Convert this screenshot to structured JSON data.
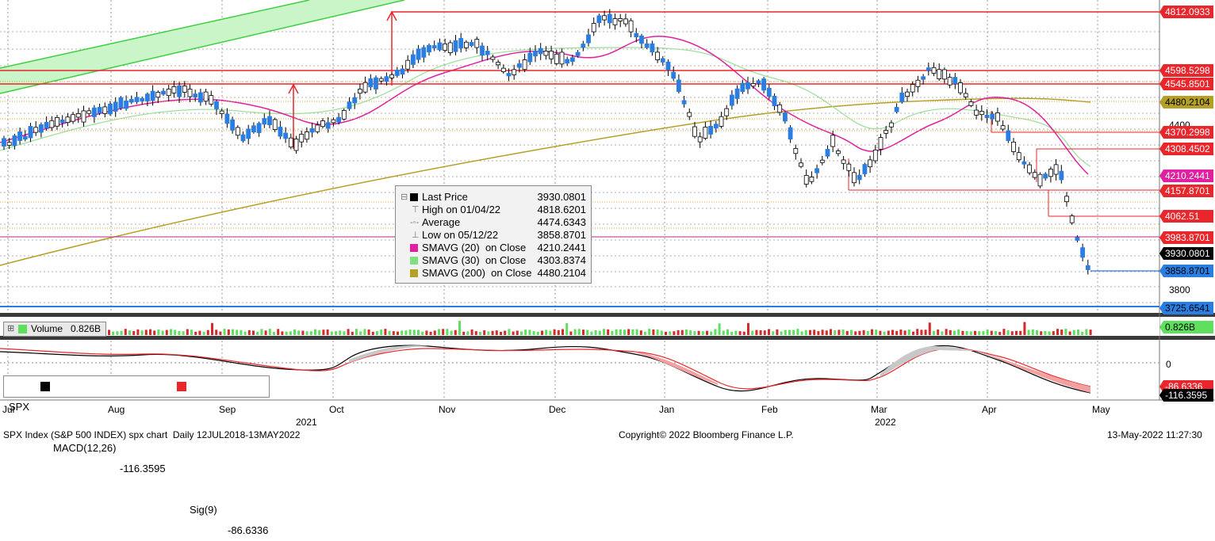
{
  "chart_data": {
    "type": "candlestick",
    "instrument": "SPX Index (S&P 500 INDEX) spx chart",
    "footer_left": "SPX Index (S&P 500 INDEX) spx chart  Daily 12JUL2018-13MAY2022",
    "footer_center": "Copyright© 2022 Bloomberg Finance L.P.",
    "footer_right": "13-May-2022 11:27:30",
    "x_months": [
      "Jul",
      "Aug",
      "Sep",
      "Oct",
      "Nov",
      "Dec",
      "Jan",
      "Feb",
      "Mar",
      "Apr",
      "May"
    ],
    "x_years": [
      "2021",
      "2022"
    ],
    "ylim": [
      3700,
      4850
    ],
    "y_ticks": [
      "4400",
      "3800"
    ],
    "price_tags": [
      {
        "value": "4812.0933",
        "color": "#e8262b",
        "text_color": "#ffffff"
      },
      {
        "value": "4598.5298",
        "color": "#e8262b",
        "text_color": "#ffffff"
      },
      {
        "value": "4545.8501",
        "color": "#e8262b",
        "text_color": "#ffffff"
      },
      {
        "value": "4480.2104",
        "color": "#b5a026",
        "text_color": "#000000"
      },
      {
        "value": "4370.2998",
        "color": "#e8262b",
        "text_color": "#ffffff"
      },
      {
        "value": "4308.4502",
        "color": "#e8262b",
        "text_color": "#ffffff"
      },
      {
        "value": "4210.2441",
        "color": "#e020a0",
        "text_color": "#ffffff"
      },
      {
        "value": "4157.8701",
        "color": "#e8262b",
        "text_color": "#ffffff"
      },
      {
        "value": "4062.51",
        "color": "#e8262b",
        "text_color": "#ffffff"
      },
      {
        "value": "3983.8701",
        "color": "#e8262b",
        "text_color": "#ffffff"
      },
      {
        "value": "3930.0801",
        "color": "#000000",
        "text_color": "#ffffff"
      },
      {
        "value": "3858.8701",
        "color": "#2a7de1",
        "text_color": "#000000"
      },
      {
        "value": "3725.6541",
        "color": "#2a7de1",
        "text_color": "#000000"
      }
    ],
    "legend": {
      "last_price": {
        "label": "Last Price",
        "value": "3930.0801"
      },
      "high": {
        "label": "High on 01/04/22",
        "value": "4818.6201"
      },
      "average": {
        "label": "Average",
        "value": "4474.6343"
      },
      "low": {
        "label": "Low on 05/12/22",
        "value": "3858.8701"
      },
      "sma20": {
        "label": "SMAVG (20)  on Close",
        "value": "4210.2441",
        "color": "#e020a0"
      },
      "sma30": {
        "label": "SMAVG (30)  on Close",
        "value": "4303.8374",
        "color": "#7ee07e"
      },
      "sma200": {
        "label": "SMAVG (200)  on Close",
        "value": "4480.2104",
        "color": "#b5a026"
      }
    },
    "volume": {
      "label": "Volume",
      "value": "0.826B",
      "tag": "0.826B"
    },
    "macd": {
      "symbol": "SPX",
      "macd_label": "MACD(12,26)",
      "macd_value": "-116.3595",
      "sig_label": "Sig(9)",
      "sig_value": "-86.6336",
      "zero_label": "0",
      "tag_macd": "-116.3595",
      "tag_sig": "-86.6336"
    },
    "colors": {
      "up": "#ffffff",
      "down": "#2a7de1",
      "resistance": "#e8262b",
      "channel": "#7ee07e",
      "sma200": "#b5a026",
      "sma20": "#e020a0",
      "sma30": "#9fe09f"
    }
  }
}
